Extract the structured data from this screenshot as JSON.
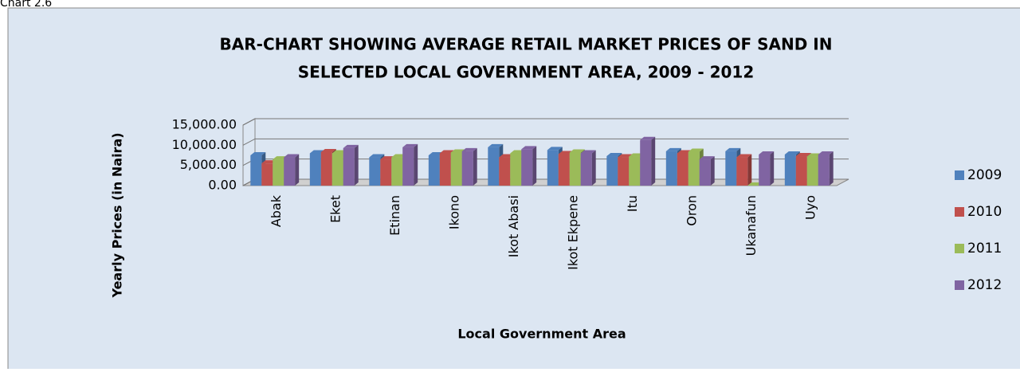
{
  "caption": "Chart 2.6",
  "chart_data": {
    "type": "bar",
    "title": "BAR-CHART SHOWING AVERAGE RETAIL MARKET PRICES OF SAND IN SELECTED LOCAL GOVERNMENT AREA, 2009 - 2012",
    "title_lines": [
      "BAR-CHART SHOWING AVERAGE RETAIL MARKET PRICES OF SAND IN",
      "SELECTED LOCAL GOVERNMENT AREA, 2009 - 2012"
    ],
    "x_label": "Local Government Area",
    "y_label": "Yearly Prices (in Naira)",
    "categories": [
      "Abak",
      "Eket",
      "Etinan",
      "Ikono",
      "Ikot Abasi",
      "Ikot Ekpene",
      "Itu",
      "Oron",
      "Ukanafun",
      "Uyo"
    ],
    "series": [
      {
        "name": "2009",
        "color": "#4f81bd",
        "values": [
          7500,
          8000,
          7000,
          7500,
          9500,
          8800,
          7300,
          8500,
          8500,
          7700
        ]
      },
      {
        "name": "2010",
        "color": "#c0504d",
        "values": [
          5500,
          8300,
          6500,
          8000,
          7000,
          7800,
          7000,
          8000,
          7000,
          7300
        ]
      },
      {
        "name": "2011",
        "color": "#9bbb59",
        "values": [
          6500,
          8000,
          7000,
          8200,
          8000,
          8200,
          7200,
          8400,
          0,
          7200
        ]
      },
      {
        "name": "2012",
        "color": "#8064a2",
        "values": [
          7000,
          9300,
          9500,
          8500,
          9000,
          8000,
          11300,
          6500,
          7700,
          7700
        ]
      }
    ],
    "ylim": [
      0,
      15000
    ],
    "yticks": [
      {
        "value": 0,
        "label": "0.00"
      },
      {
        "value": 5000,
        "label": "5,000.00"
      },
      {
        "value": 10000,
        "label": "10,000.00"
      },
      {
        "value": 15000,
        "label": "15,000.00"
      }
    ],
    "grid": true,
    "legend": "right"
  }
}
